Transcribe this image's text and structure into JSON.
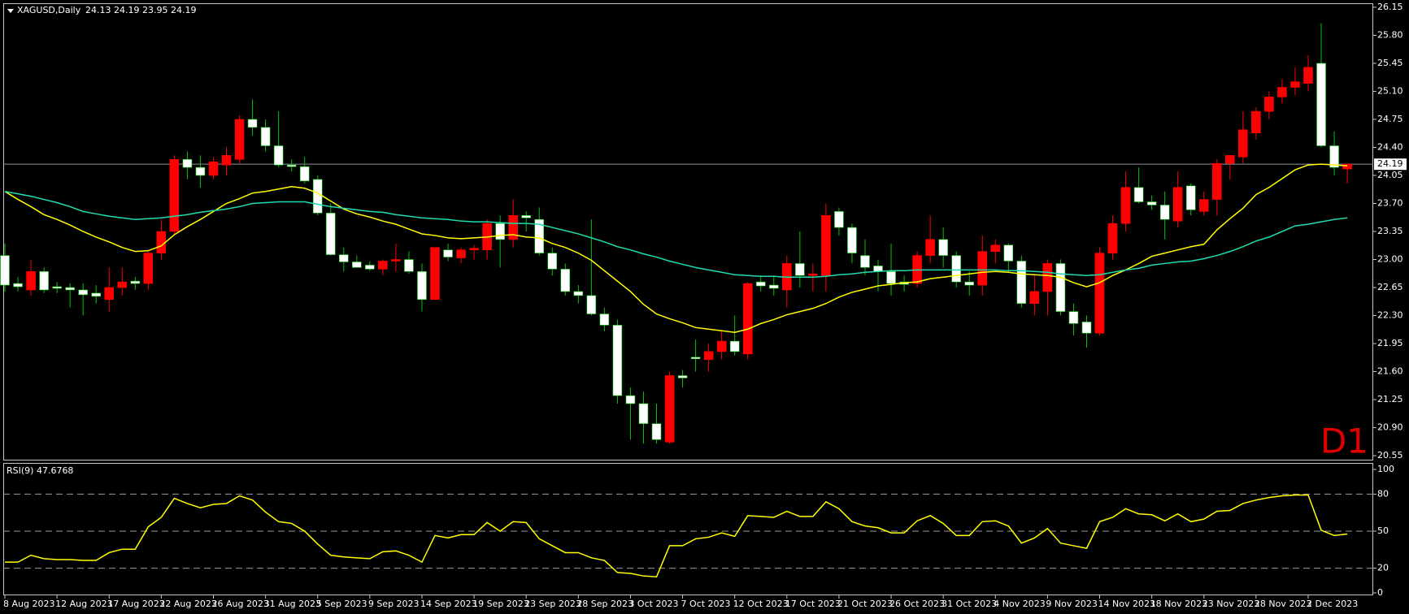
{
  "chart_data": [
    {
      "type": "candlestick",
      "title": "XAGUSD,Daily",
      "ohlc_text": "24.13 24.19 23.95 24.19",
      "watermark": "D1",
      "categories": [
        "8 Aug 2023",
        null,
        null,
        null,
        "12 Aug 2023",
        null,
        null,
        null,
        "17 Aug 2023",
        null,
        null,
        null,
        "22 Aug 2023",
        null,
        null,
        null,
        "26 Aug 2023",
        null,
        null,
        null,
        "31 Aug 2023",
        null,
        null,
        null,
        "5 Sep 2023",
        null,
        null,
        null,
        "9 Sep 2023",
        null,
        null,
        null,
        "14 Sep 2023",
        null,
        null,
        null,
        "19 Sep 2023",
        null,
        null,
        null,
        "23 Sep 2023",
        null,
        null,
        null,
        "28 Sep 2023",
        null,
        null,
        null,
        "3 Oct 2023",
        null,
        null,
        null,
        "7 Oct 2023",
        null,
        null,
        null,
        "12 Oct 2023",
        null,
        null,
        null,
        "17 Oct 2023",
        null,
        null,
        null,
        "21 Oct 2023",
        null,
        null,
        null,
        "26 Oct 2023",
        null,
        null,
        null,
        "31 Oct 2023",
        null,
        null,
        null,
        "4 Nov 2023",
        null,
        null,
        null,
        "9 Nov 2023",
        null,
        null,
        null,
        "14 Nov 2023",
        null,
        null,
        null,
        "18 Nov 2023",
        null,
        null,
        null,
        "23 Nov 2023",
        null,
        null,
        null,
        "28 Nov 2023",
        null,
        null,
        null,
        "2 Dec 2023",
        null,
        null,
        null
      ],
      "open": [
        23.05,
        22.7,
        22.62,
        22.85,
        22.66,
        22.65,
        22.62,
        22.58,
        22.5,
        22.65,
        22.73,
        22.7,
        23.08,
        23.35,
        24.25,
        24.15,
        24.05,
        24.18,
        24.25,
        24.75,
        24.65,
        24.42,
        24.18,
        24.16,
        24.0,
        23.58,
        23.06,
        22.97,
        22.93,
        22.88,
        22.98,
        23.0,
        22.85,
        22.5,
        23.12,
        23.02,
        23.12,
        23.12,
        23.45,
        23.25,
        23.55,
        23.5,
        23.08,
        22.88,
        22.6,
        22.55,
        22.32,
        22.18,
        21.3,
        21.2,
        20.95,
        20.72,
        21.55,
        21.78,
        21.75,
        21.85,
        21.98,
        21.82,
        22.72,
        22.68,
        22.62,
        22.95,
        22.8,
        22.8,
        23.6,
        23.4,
        23.05,
        22.92,
        22.85,
        22.72,
        22.7,
        23.05,
        23.25,
        23.05,
        22.72,
        22.68,
        23.1,
        23.18,
        22.98,
        22.45,
        22.6,
        22.95,
        22.35,
        22.22,
        22.08,
        23.08,
        23.45,
        23.9,
        23.72,
        23.68,
        23.48,
        23.92,
        23.6,
        23.75,
        24.2,
        24.28,
        24.58,
        24.85,
        25.03,
        25.15,
        25.2,
        25.45,
        24.42,
        24.13
      ],
      "high": [
        23.2,
        22.78,
        23.0,
        22.9,
        22.72,
        22.7,
        22.7,
        22.68,
        22.9,
        22.9,
        22.78,
        23.1,
        23.5,
        24.3,
        24.35,
        24.3,
        24.28,
        24.4,
        24.8,
        25.0,
        24.75,
        24.85,
        24.25,
        24.28,
        24.05,
        23.7,
        23.15,
        23.05,
        22.98,
        23.0,
        23.2,
        23.1,
        22.95,
        23.15,
        23.2,
        23.15,
        23.18,
        23.5,
        23.55,
        23.75,
        23.6,
        23.65,
        23.15,
        22.95,
        22.68,
        23.5,
        22.4,
        22.25,
        21.4,
        21.35,
        21.2,
        21.6,
        21.62,
        22.0,
        21.95,
        22.1,
        22.3,
        22.72,
        22.8,
        22.8,
        23.05,
        23.35,
        22.95,
        23.7,
        23.65,
        23.45,
        23.25,
        23.0,
        23.2,
        22.8,
        23.1,
        23.55,
        23.4,
        23.1,
        22.85,
        23.3,
        23.25,
        23.2,
        23.05,
        22.8,
        23.0,
        23.0,
        22.45,
        22.3,
        23.15,
        23.55,
        24.1,
        24.15,
        23.8,
        23.85,
        24.1,
        23.95,
        23.85,
        24.25,
        24.3,
        24.85,
        24.9,
        25.1,
        25.25,
        25.4,
        25.55,
        25.95,
        24.6,
        24.19
      ],
      "low": [
        22.6,
        22.6,
        22.55,
        22.58,
        22.58,
        22.4,
        22.3,
        22.45,
        22.35,
        22.55,
        22.62,
        22.62,
        23.0,
        23.3,
        24.0,
        23.9,
        24.0,
        24.05,
        24.2,
        24.55,
        24.35,
        24.15,
        24.1,
        23.95,
        23.55,
        23.05,
        22.85,
        22.9,
        22.86,
        22.8,
        22.85,
        22.82,
        22.35,
        22.5,
        22.98,
        22.95,
        23.0,
        23.0,
        22.9,
        23.15,
        23.35,
        23.05,
        22.8,
        22.55,
        22.45,
        22.3,
        22.1,
        21.2,
        20.75,
        20.7,
        20.7,
        20.7,
        21.4,
        21.6,
        21.6,
        21.75,
        21.8,
        21.75,
        22.6,
        22.55,
        22.4,
        22.65,
        22.6,
        22.6,
        23.3,
        22.95,
        22.8,
        22.6,
        22.55,
        22.6,
        22.65,
        22.95,
        22.9,
        22.65,
        22.55,
        22.55,
        22.95,
        22.85,
        22.4,
        22.3,
        22.3,
        22.3,
        22.05,
        21.9,
        22.05,
        23.0,
        23.35,
        23.7,
        23.62,
        23.25,
        23.4,
        23.55,
        23.55,
        23.55,
        24.0,
        24.2,
        24.5,
        24.75,
        24.95,
        25.05,
        25.1,
        24.4,
        24.05,
        23.95
      ],
      "close": [
        22.68,
        22.66,
        22.85,
        22.62,
        22.64,
        22.62,
        22.56,
        22.54,
        22.65,
        22.72,
        22.7,
        23.08,
        23.35,
        24.25,
        24.15,
        24.05,
        24.22,
        24.3,
        24.75,
        24.65,
        24.42,
        24.18,
        24.16,
        23.98,
        23.58,
        23.06,
        22.97,
        22.9,
        22.88,
        22.98,
        23.0,
        22.85,
        22.5,
        23.15,
        23.03,
        23.12,
        23.14,
        23.45,
        23.25,
        23.55,
        23.52,
        23.08,
        22.88,
        22.6,
        22.55,
        22.32,
        22.18,
        21.3,
        21.2,
        20.95,
        20.75,
        21.55,
        21.52,
        21.76,
        21.85,
        21.98,
        21.85,
        22.7,
        22.67,
        22.64,
        22.95,
        22.8,
        22.82,
        23.55,
        23.4,
        23.08,
        22.9,
        22.85,
        22.7,
        22.69,
        23.05,
        23.25,
        23.05,
        22.72,
        22.68,
        23.1,
        23.18,
        22.98,
        22.45,
        22.6,
        22.95,
        22.35,
        22.2,
        22.08,
        23.08,
        23.45,
        23.9,
        23.72,
        23.68,
        23.5,
        23.9,
        23.62,
        23.75,
        24.2,
        24.3,
        24.62,
        24.85,
        25.03,
        25.15,
        25.22,
        25.4,
        24.42,
        24.15,
        24.19
      ],
      "up_color": "#ff0000",
      "down_color": "#ffffff",
      "up_wick_color": "#ff0000",
      "down_wick_color": "#00c800",
      "overlays": [
        {
          "color": "#ffff00",
          "values": [
            23.85,
            23.75,
            23.66,
            23.56,
            23.5,
            23.43,
            23.35,
            23.28,
            23.22,
            23.15,
            23.1,
            23.11,
            23.17,
            23.31,
            23.41,
            23.5,
            23.6,
            23.7,
            23.76,
            23.83,
            23.85,
            23.88,
            23.91,
            23.89,
            23.83,
            23.73,
            23.63,
            23.57,
            23.53,
            23.48,
            23.44,
            23.38,
            23.32,
            23.3,
            23.27,
            23.26,
            23.27,
            23.28,
            23.3,
            23.31,
            23.28,
            23.27,
            23.2,
            23.15,
            23.08,
            22.99,
            22.86,
            22.73,
            22.6,
            22.44,
            22.32,
            22.26,
            22.21,
            22.15,
            22.13,
            22.11,
            22.09,
            22.13,
            22.2,
            22.25,
            22.31,
            22.35,
            22.39,
            22.45,
            22.53,
            22.59,
            22.63,
            22.67,
            22.69,
            22.71,
            22.72,
            22.76,
            22.78,
            22.8,
            22.82,
            22.84,
            22.85,
            22.84,
            22.82,
            22.81,
            22.8,
            22.78,
            22.71,
            22.66,
            22.71,
            22.8,
            22.87,
            22.95,
            23.04,
            23.08,
            23.12,
            23.16,
            23.19,
            23.37,
            23.51,
            23.64,
            23.81,
            23.9,
            24.01,
            24.12,
            24.18,
            24.19,
            24.18,
            24.17
          ]
        },
        {
          "color": "#20dcb0",
          "values": [
            23.85,
            23.82,
            23.79,
            23.75,
            23.71,
            23.66,
            23.6,
            23.57,
            23.54,
            23.52,
            23.5,
            23.51,
            23.52,
            23.54,
            23.56,
            23.59,
            23.61,
            23.63,
            23.66,
            23.7,
            23.71,
            23.72,
            23.72,
            23.72,
            23.69,
            23.66,
            23.64,
            23.62,
            23.6,
            23.59,
            23.56,
            23.54,
            23.52,
            23.51,
            23.5,
            23.48,
            23.47,
            23.47,
            23.46,
            23.45,
            23.45,
            23.44,
            23.4,
            23.36,
            23.32,
            23.27,
            23.22,
            23.16,
            23.12,
            23.07,
            23.03,
            22.98,
            22.94,
            22.9,
            22.87,
            22.84,
            22.81,
            22.8,
            22.79,
            22.79,
            22.78,
            22.78,
            22.78,
            22.79,
            22.81,
            22.82,
            22.84,
            22.85,
            22.86,
            22.86,
            22.87,
            22.87,
            22.87,
            22.87,
            22.87,
            22.87,
            22.87,
            22.86,
            22.86,
            22.85,
            22.84,
            22.82,
            22.81,
            22.8,
            22.81,
            22.84,
            22.87,
            22.89,
            22.93,
            22.95,
            22.97,
            22.98,
            23.01,
            23.05,
            23.1,
            23.16,
            23.23,
            23.28,
            23.35,
            23.42,
            23.44,
            23.47,
            23.5,
            23.52
          ]
        }
      ],
      "last_price": 24.19,
      "ylim": [
        20.5,
        26.2
      ],
      "yticks": [
        26.15,
        {
          "value": 25.8,
          "label": "25.80"
        },
        25.45,
        {
          "value": 25.1,
          "label": "25.10"
        },
        24.75,
        {
          "value": 24.4,
          "label": "24.40"
        },
        24.05,
        {
          "value": 23.7,
          "label": "23.70"
        },
        23.35,
        {
          "value": 23.0,
          "label": "23.00"
        },
        22.65,
        {
          "value": 22.3,
          "label": "22.30"
        },
        21.95,
        {
          "value": 21.6,
          "label": "21.60"
        },
        21.25,
        {
          "value": 20.9,
          "label": "20.90"
        },
        20.55
      ],
      "grid": false
    },
    {
      "type": "line",
      "title": "RSI(9) 47.6768",
      "color": "#ffff00",
      "values": [
        24.9,
        24.9,
        30.5,
        27.7,
        27.0,
        27.0,
        26.3,
        26.3,
        32.6,
        35.4,
        35.4,
        53.5,
        61.2,
        76.6,
        72.4,
        68.9,
        71.7,
        72.4,
        78.6,
        75.2,
        65.4,
        57.7,
        56.3,
        50.0,
        39.6,
        30.5,
        29.1,
        28.4,
        27.7,
        33.3,
        34.0,
        30.5,
        24.9,
        46.5,
        44.5,
        47.2,
        47.2,
        57.0,
        50.0,
        57.7,
        57.0,
        43.8,
        38.2,
        32.6,
        32.6,
        28.4,
        26.3,
        16.5,
        15.8,
        13.7,
        13.0,
        38.2,
        38.2,
        43.8,
        45.1,
        48.6,
        45.8,
        62.6,
        61.9,
        61.2,
        66.1,
        61.9,
        61.9,
        73.8,
        68.2,
        57.7,
        54.2,
        52.8,
        48.6,
        48.6,
        58.4,
        62.6,
        56.3,
        46.5,
        46.5,
        57.7,
        58.4,
        54.2,
        40.3,
        44.5,
        52.1,
        40.3,
        38.2,
        36.1,
        57.7,
        61.2,
        68.2,
        64.0,
        63.3,
        58.4,
        64.0,
        57.7,
        59.8,
        66.1,
        66.8,
        72.4,
        75.2,
        77.2,
        78.6,
        79.3,
        79.3,
        50.7,
        46.5,
        47.7
      ],
      "ylim": [
        0,
        100
      ],
      "yticks": [
        100,
        80,
        50,
        20,
        0
      ],
      "level_style": "dashed"
    }
  ]
}
